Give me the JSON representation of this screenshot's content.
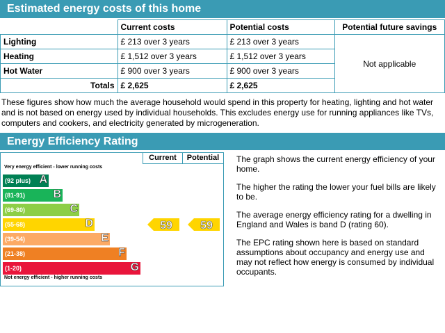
{
  "costs": {
    "title": "Estimated energy costs of this home",
    "headers": [
      "Current costs",
      "Potential costs",
      "Potential future savings"
    ],
    "rows": [
      {
        "label": "Lighting",
        "current": "£ 213 over 3 years",
        "potential": "£ 213 over 3 years"
      },
      {
        "label": "Heating",
        "current": "£ 1,512 over 3 years",
        "potential": "£ 1,512 over 3 years"
      },
      {
        "label": "Hot Water",
        "current": "£ 900 over 3 years",
        "potential": "£ 900 over 3 years"
      }
    ],
    "totals": {
      "label": "Totals",
      "current": "£ 2,625",
      "potential": "£ 2,625"
    },
    "savings": "Not applicable",
    "note": "These figures show how much the average household would spend in this property for heating, lighting and hot water and is not based on energy used by individual households. This excludes energy use for running appliances like TVs, computers and cookers, and electricity generated by microgeneration."
  },
  "rating": {
    "title": "Energy Efficiency Rating",
    "col_current": "Current",
    "col_potential": "Potential",
    "top_caption": "Very energy efficient - lower running costs",
    "bottom_caption": "Not energy efficient - higher running costs",
    "bands": [
      {
        "range": "(92 plus)",
        "letter": "A",
        "color": "#008054"
      },
      {
        "range": "(81-91)",
        "letter": "B",
        "color": "#19b459"
      },
      {
        "range": "(69-80)",
        "letter": "C",
        "color": "#8dce46"
      },
      {
        "range": "(55-68)",
        "letter": "D",
        "color": "#ffd500"
      },
      {
        "range": "(39-54)",
        "letter": "E",
        "color": "#fcaa65"
      },
      {
        "range": "(21-38)",
        "letter": "F",
        "color": "#ef8023"
      },
      {
        "range": "(1-20)",
        "letter": "G",
        "color": "#e9153b"
      }
    ],
    "current_value": "59",
    "potential_value": "59",
    "arrow_color": "#ffd500",
    "description": [
      "The graph shows the current energy efficiency of your home.",
      "The higher the rating the lower your fuel bills are likely to be.",
      "The average energy efficiency rating for a dwelling in England and Wales is band D (rating 60).",
      "The EPC rating shown here is based on standard assumptions about occupancy and energy use and may not reflect how energy is consumed by individual occupants."
    ]
  }
}
